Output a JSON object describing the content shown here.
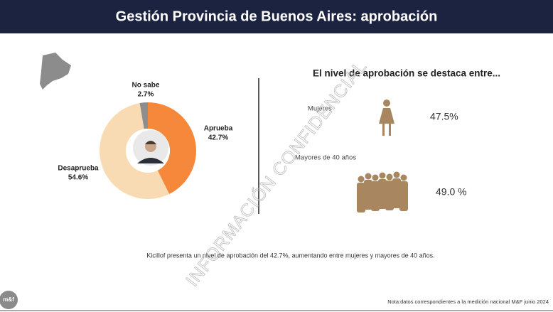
{
  "header": {
    "title": "Gestión Provincia de Buenos Aires: aprobación"
  },
  "chart_data": {
    "type": "pie",
    "donut": true,
    "categories": [
      "Aprueba",
      "Desaprueba",
      "No sabe"
    ],
    "values": [
      42.7,
      54.6,
      2.7
    ],
    "value_labels": [
      "42.7%",
      "54.6%",
      "2.7%"
    ],
    "colors": [
      "#f5883a",
      "#f9dbb3",
      "#8e8e8e"
    ]
  },
  "highlights": {
    "title": "El nivel de aprobación se destaca entre...",
    "items": [
      {
        "label": "Mujeres",
        "value": "47.5%"
      },
      {
        "label": "Mayores de 40 años",
        "value": "49.0 %"
      }
    ]
  },
  "watermark": "INFORMACIÓN CONFIDENCIAL",
  "caption": "Kicillof presenta un nivel de aprobación del 42.7%, aumentando entre mujeres y mayores de 40 años.",
  "footnote": "Nota:datos correspondientes a la medición nacional M&F junio 2024",
  "logo": "m&f"
}
